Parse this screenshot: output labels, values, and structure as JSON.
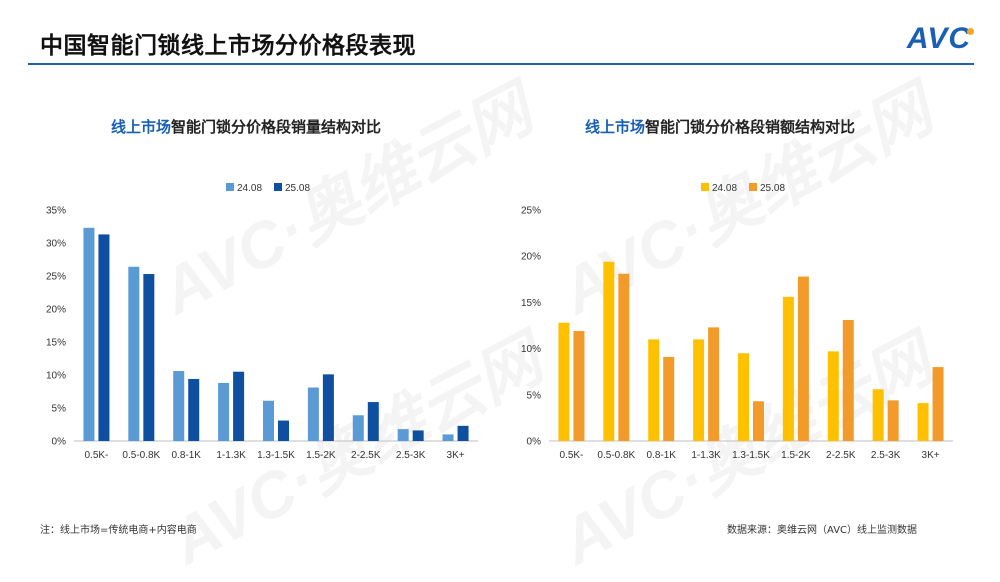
{
  "page": {
    "title": "中国智能门锁线上市场分价格段表现",
    "logo_text": "AVC",
    "footnote_left": "注：线上市场=传统电商+内容电商",
    "footnote_right": "数据来源：奥维云网（AVC）线上监测数据"
  },
  "colors": {
    "brand": "#1a5fb4",
    "vol_2408": "#5b9bd5",
    "vol_2508": "#0e4fa0",
    "amt_2408": "#ffc000",
    "amt_2508": "#f29b2b"
  },
  "chart_data": [
    {
      "type": "bar",
      "title_highlight": "线上市场",
      "title_rest": "智能门锁分价格段销量结构对比",
      "categories": [
        "0.5K-",
        "0.5-0.8K",
        "0.8-1K",
        "1-1.3K",
        "1.3-1.5K",
        "1.5-2K",
        "2-2.5K",
        "2.5-3K",
        "3K+"
      ],
      "series": [
        {
          "name": "24.08",
          "values": [
            32.3,
            26.4,
            10.6,
            8.8,
            6.1,
            8.1,
            3.9,
            1.8,
            1.0
          ],
          "color": "#5b9bd5"
        },
        {
          "name": "25.08",
          "values": [
            31.3,
            25.3,
            9.4,
            10.5,
            3.1,
            10.1,
            5.9,
            1.6,
            2.3
          ],
          "color": "#0e4fa0"
        }
      ],
      "ylim": [
        0,
        35
      ],
      "yticks": [
        "0%",
        "5%",
        "10%",
        "15%",
        "20%",
        "25%",
        "30%",
        "35%"
      ],
      "legend": "top-center",
      "grid": false
    },
    {
      "type": "bar",
      "title_highlight": "线上市场",
      "title_rest": "智能门锁分价格段销额结构对比",
      "categories": [
        "0.5K-",
        "0.5-0.8K",
        "0.8-1K",
        "1-1.3K",
        "1.3-1.5K",
        "1.5-2K",
        "2-2.5K",
        "2.5-3K",
        "3K+"
      ],
      "series": [
        {
          "name": "24.08",
          "values": [
            12.8,
            19.4,
            11.0,
            11.0,
            9.5,
            15.6,
            9.7,
            5.6,
            4.1
          ],
          "color": "#ffc000"
        },
        {
          "name": "25.08",
          "values": [
            11.9,
            18.1,
            9.1,
            12.3,
            4.3,
            17.8,
            13.1,
            4.4,
            8.0
          ],
          "color": "#f29b2b"
        }
      ],
      "ylim": [
        0,
        25
      ],
      "yticks": [
        "0%",
        "5%",
        "10%",
        "15%",
        "20%",
        "25%"
      ],
      "legend": "top-center",
      "grid": false
    }
  ]
}
